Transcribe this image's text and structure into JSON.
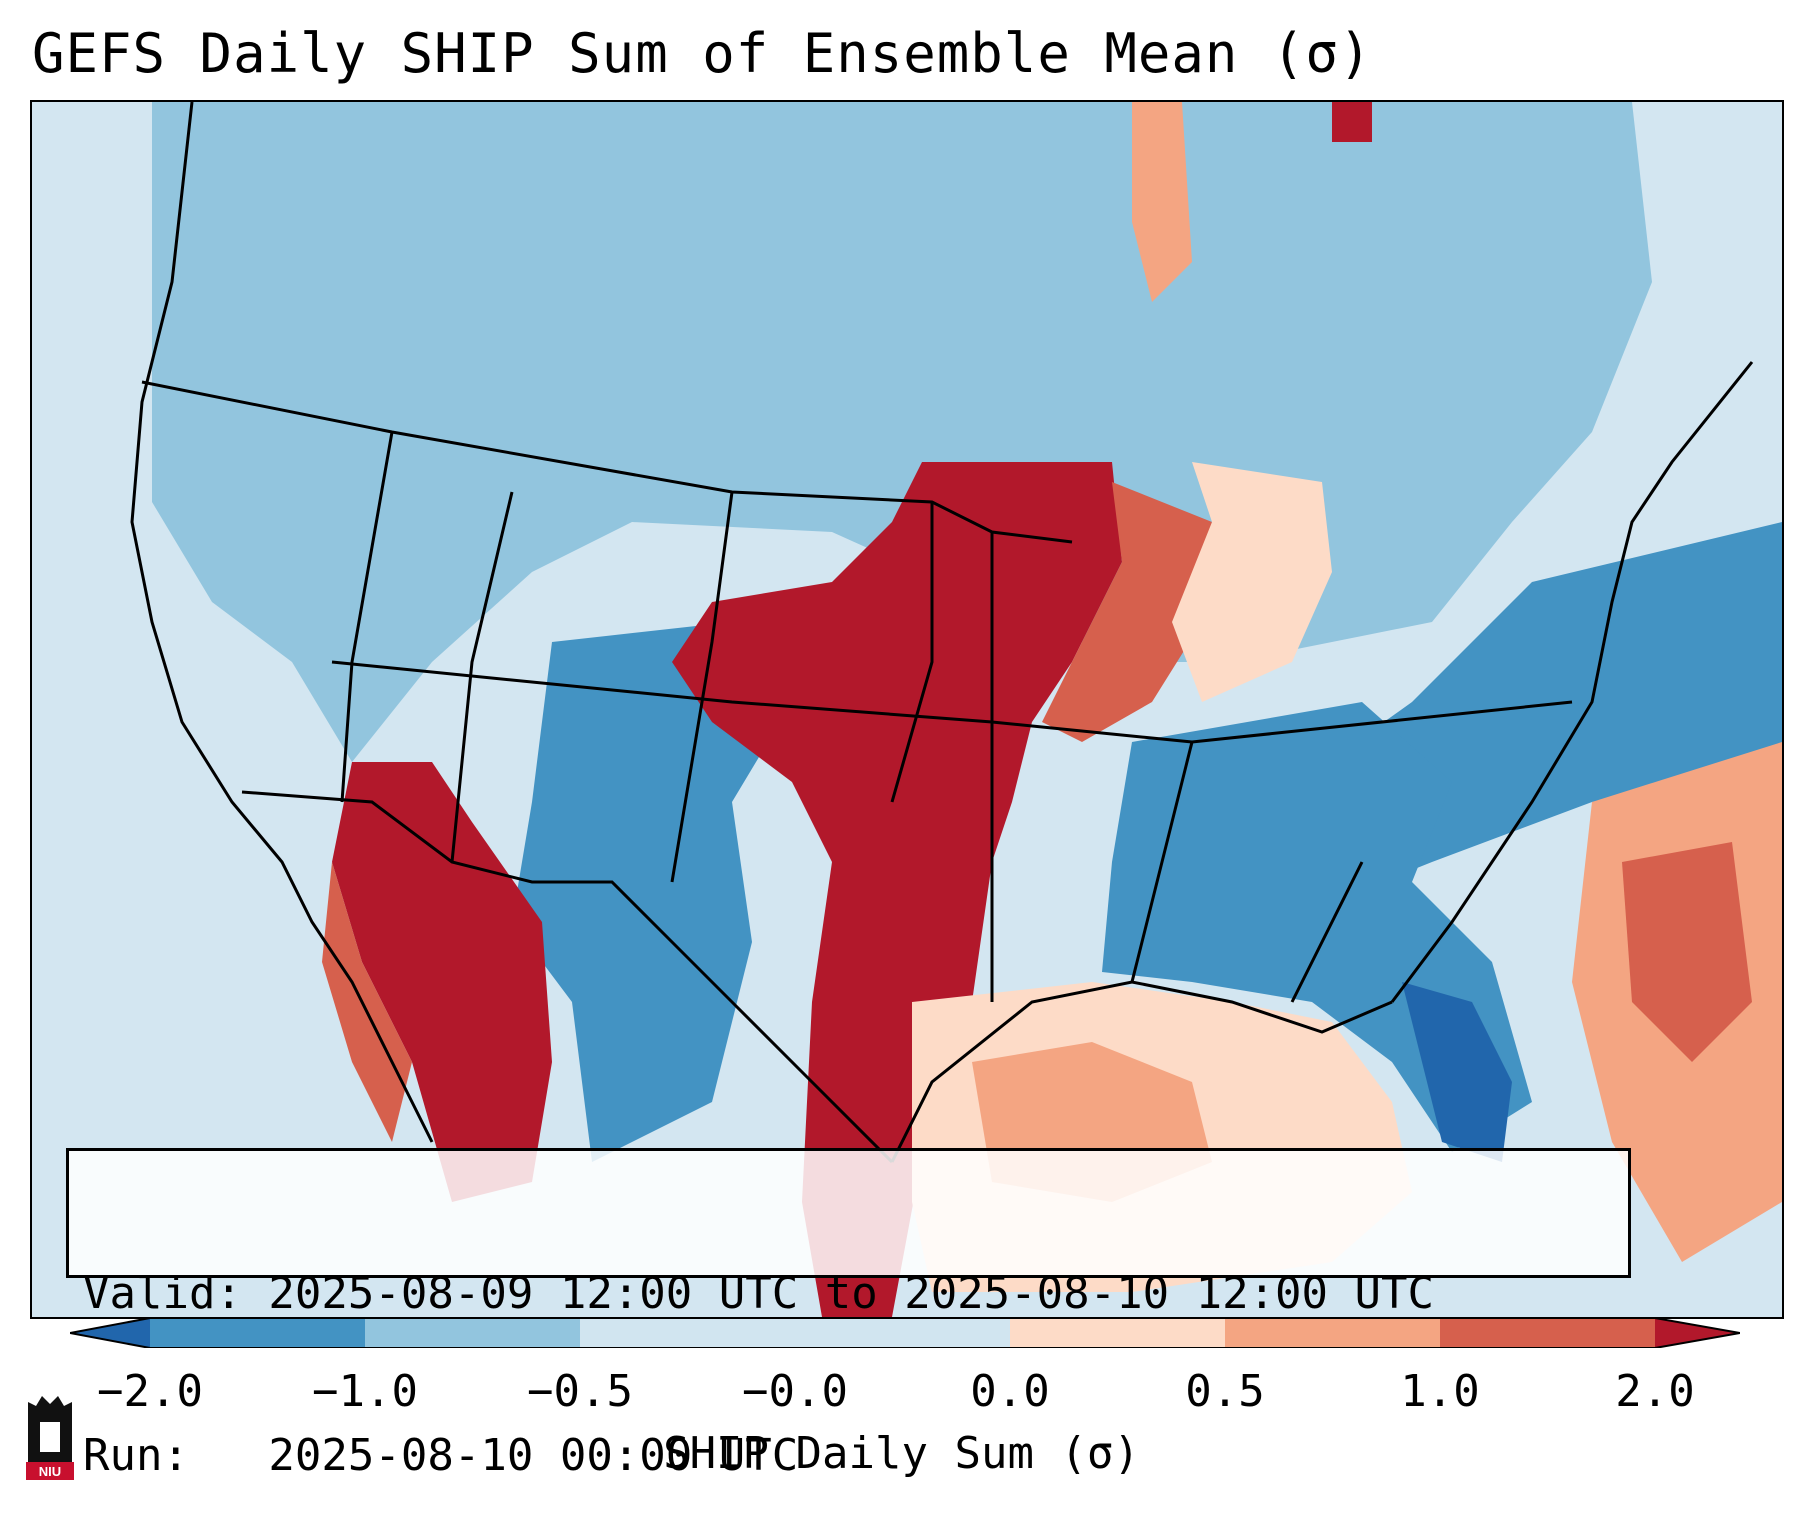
{
  "title": "GEFS Daily SHIP Sum of Ensemble Mean (σ)",
  "info": {
    "valid_line": "Valid: 2025-08-09 12:00 UTC to 2025-08-10 12:00 UTC",
    "run_line": "Run:   2025-08-10 00:00 UTC"
  },
  "colorbar": {
    "label": "SHIP Daily Sum (σ)",
    "ticks": [
      "−2.0",
      "−1.0",
      "−0.5",
      "−0.0",
      "0.0",
      "0.5",
      "1.0",
      "2.0"
    ],
    "colors": {
      "below_-2": "#2166ac",
      "-2_to_-1": "#4393c3",
      "-1_to_-0.5": "#92c5de",
      "-0.5_to_0": "#d1e5f0",
      "zero": "#f7f7f7",
      "0_to_0.5": "#fddbc7",
      "0.5_to_1": "#f4a582",
      "1_to_2": "#d6604d",
      "above_2": "#b2182b"
    }
  },
  "logo": {
    "text": "NIU",
    "icon": "university-tower-icon"
  }
}
